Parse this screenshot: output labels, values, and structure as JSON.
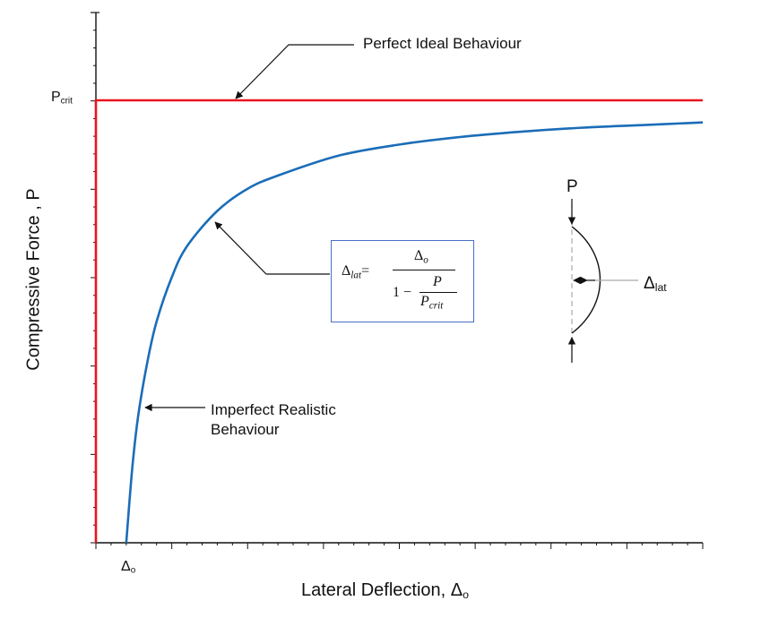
{
  "chart_data": {
    "type": "line",
    "title": "",
    "xlabel": "Lateral Deflection, Δ",
    "xlabel_sub": "o",
    "ylabel": "Compressive Force , P",
    "grid": false,
    "legend": "none",
    "ylim": [
      0,
      1.0
    ],
    "y_ref": {
      "label": "P",
      "label_sub": "crit",
      "value": 1.0
    },
    "x_tick_label": {
      "label": "Δ",
      "label_sub": "o"
    },
    "series": [
      {
        "id": "ideal",
        "color": "#e8151c",
        "points_desc": "vertical line at x=0 up to Pcrit, then horizontal at Pcrit"
      },
      {
        "id": "imperfect",
        "color": "#1b6db8",
        "points": [
          [
            1.0,
            0.0
          ],
          [
            1.2,
            0.17
          ],
          [
            1.4,
            0.29
          ],
          [
            1.7,
            0.41
          ],
          [
            2.0,
            0.5
          ],
          [
            2.5,
            0.6
          ],
          [
            3.0,
            0.67
          ],
          [
            4.0,
            0.75
          ],
          [
            5.0,
            0.8
          ],
          [
            6.0,
            0.83
          ],
          [
            8.0,
            0.875
          ],
          [
            10.0,
            0.9
          ],
          [
            12.0,
            0.917
          ],
          [
            14.0,
            0.929
          ],
          [
            16.0,
            0.938
          ],
          [
            18.0,
            0.944
          ],
          [
            20.0,
            0.95
          ]
        ]
      }
    ],
    "annotations": {
      "ideal": "Perfect Ideal Behaviour",
      "imperfect_line1": "Imperfect Realistic",
      "imperfect_line2": "Behaviour"
    },
    "formula": {
      "lhs": "Δ",
      "lhs_sub": "lat",
      "equals": "=",
      "num": "Δ",
      "num_sub": "o",
      "den_prefix": "1 −",
      "inner_num": "P",
      "inner_den": "P",
      "inner_den_sub": "crit"
    },
    "inset": {
      "load_label": "P",
      "deflection_label": "Δ",
      "deflection_sub": "lat"
    }
  },
  "colors": {
    "ideal": "#e8151c",
    "imperfect": "#1b6db8",
    "axis": "#111111",
    "formula_border": "#4a6fc7",
    "inset_guide": "#aaaaaa"
  }
}
